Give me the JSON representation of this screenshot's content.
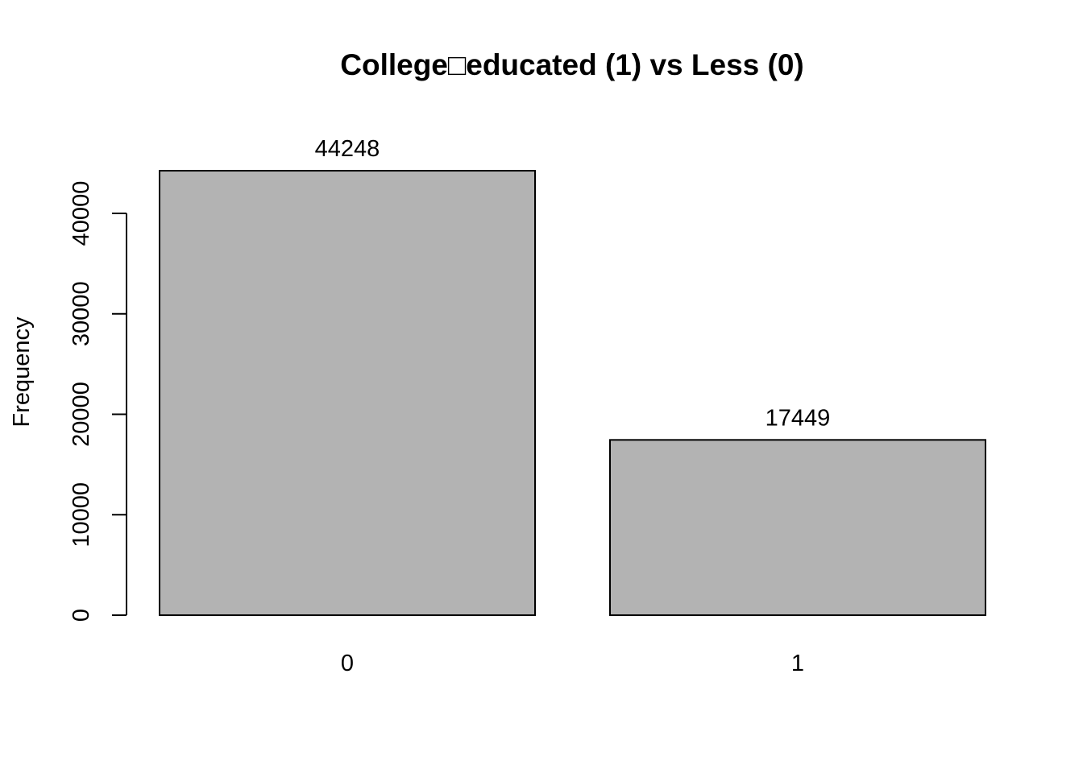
{
  "chart_data": {
    "type": "bar",
    "title": "College□educated (1) vs Less (0)",
    "xlabel": "",
    "ylabel": "Frequency",
    "categories": [
      "0",
      "1"
    ],
    "values": [
      44248,
      17449
    ],
    "data_labels": [
      "44248",
      "17449"
    ],
    "yticks": [
      0,
      10000,
      20000,
      30000,
      40000
    ],
    "ytick_labels": [
      "0",
      "10000",
      "20000",
      "30000",
      "40000"
    ],
    "ylim": [
      0,
      44248
    ],
    "bar_color": "#b3b3b3",
    "bar_edge_color": "#000000",
    "grid": false,
    "legend": "none"
  }
}
